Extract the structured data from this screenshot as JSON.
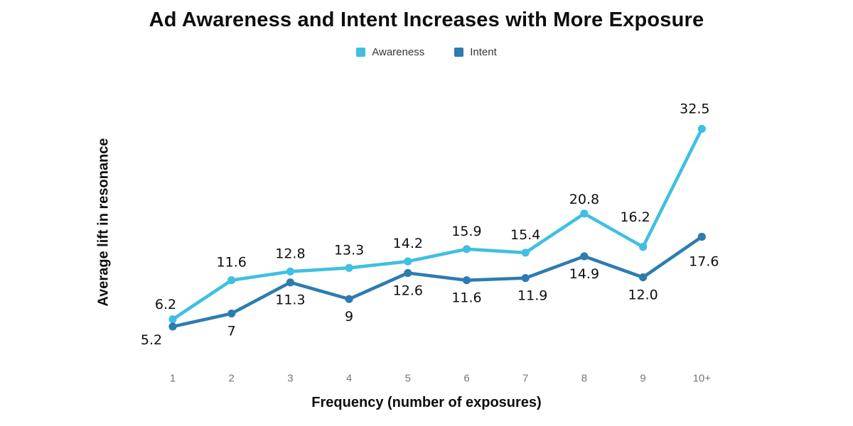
{
  "header": {
    "title": "Ad Awareness and Intent Increases with More Exposure"
  },
  "legend": {
    "items": [
      {
        "label": "Awareness",
        "color": "#3fbfe2"
      },
      {
        "label": "Intent",
        "color": "#2d7cb1"
      }
    ]
  },
  "chart_data": {
    "type": "line",
    "title": "Ad Awareness and Intent Increases with More Exposure",
    "x": [
      "1",
      "2",
      "3",
      "4",
      "5",
      "6",
      "7",
      "8",
      "9",
      "10+"
    ],
    "series": [
      {
        "name": "Awareness",
        "color": "#3fbfe2",
        "values": [
          6.2,
          11.6,
          12.8,
          13.3,
          14.2,
          15.9,
          15.4,
          20.8,
          16.2,
          32.5
        ],
        "labels": [
          "6.2",
          "11.6",
          "12.8",
          "13.3",
          "14.2",
          "15.9",
          "15.4",
          "20.8",
          "16.2",
          "32.5"
        ],
        "label_position": "above"
      },
      {
        "name": "Intent",
        "color": "#2d7cb1",
        "values": [
          5.2,
          7,
          11.3,
          9,
          12.6,
          11.6,
          11.9,
          14.9,
          12.0,
          17.6
        ],
        "labels": [
          "5.2",
          "7",
          "11.3",
          "9",
          "12.6",
          "11.6",
          "11.9",
          "14.9",
          "12.0",
          "17.6"
        ],
        "label_position": "below"
      }
    ],
    "xlabel": "Frequency (number of exposures)",
    "ylabel": "Average lift in resonance",
    "ylim": [
      0,
      35
    ],
    "grid": false,
    "y_axis_ticks_visible": false,
    "legend_position": "top-center",
    "markers": true
  }
}
